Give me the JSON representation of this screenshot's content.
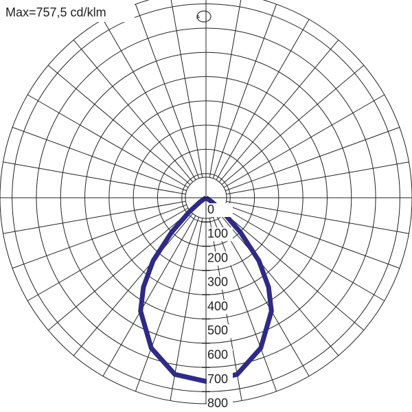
{
  "chart_data": {
    "type": "polar",
    "title": "Max=757,5 cd/klm",
    "angles": [
      -90,
      -80,
      -70,
      -60,
      -55,
      -50,
      -45,
      -40,
      -35,
      -30,
      -20,
      -10,
      0,
      10,
      20,
      30,
      35,
      40,
      45,
      50,
      55,
      60,
      70,
      80,
      90
    ],
    "series": [
      {
        "color": "#2e2a85",
        "values": [
          0,
          0,
          0,
          5,
          30,
          90,
          200,
          340,
          450,
          540,
          660,
          740,
          757.5,
          740,
          660,
          540,
          450,
          340,
          200,
          90,
          30,
          5,
          0,
          0,
          0
        ]
      }
    ],
    "rlim": [
      0,
      850
    ],
    "rticks": [
      0,
      100,
      200,
      300,
      400,
      500,
      600,
      700,
      800
    ],
    "angle_step": 10,
    "grid": true
  }
}
